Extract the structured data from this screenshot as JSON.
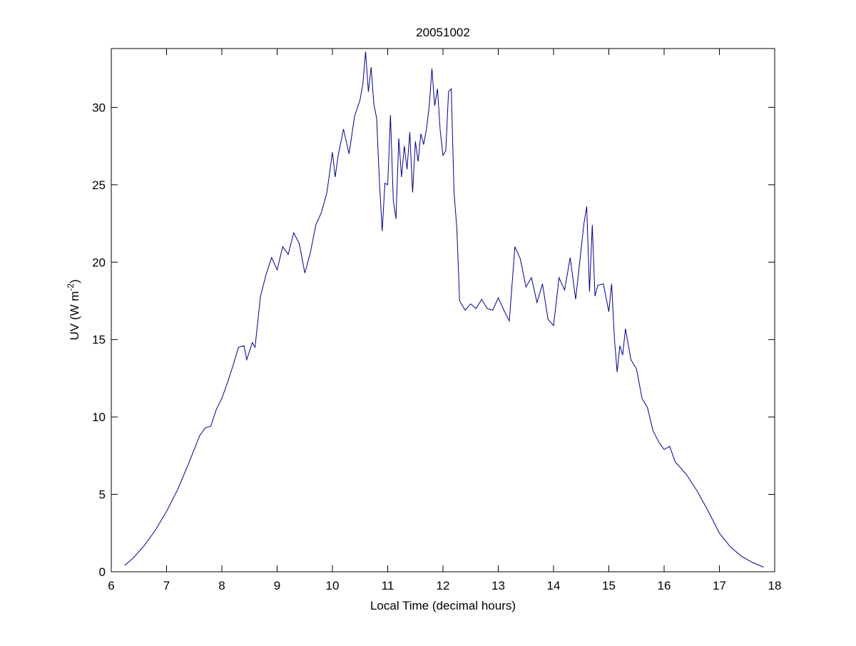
{
  "chart_data": {
    "type": "line",
    "title": "20051002",
    "xlabel": "Local Time (decimal hours)",
    "ylabel_main": "UV (W m",
    "ylabel_sup": "-2",
    "ylabel_close": ")",
    "xlim": [
      6,
      18
    ],
    "ylim": [
      0,
      33.8
    ],
    "xticks": [
      6,
      7,
      8,
      9,
      10,
      11,
      12,
      13,
      14,
      15,
      16,
      17,
      18
    ],
    "yticks": [
      0,
      5,
      10,
      15,
      20,
      25,
      30
    ],
    "grid": false,
    "legend": "none",
    "series": [
      {
        "color": "#00008b",
        "x": [
          6.24,
          6.4,
          6.6,
          6.8,
          7.0,
          7.2,
          7.4,
          7.6,
          7.7,
          7.8,
          7.9,
          8.0,
          8.1,
          8.2,
          8.3,
          8.4,
          8.45,
          8.55,
          8.6,
          8.7,
          8.8,
          8.9,
          9.0,
          9.1,
          9.2,
          9.3,
          9.4,
          9.5,
          9.6,
          9.7,
          9.8,
          9.9,
          10.0,
          10.05,
          10.1,
          10.2,
          10.3,
          10.4,
          10.5,
          10.55,
          10.6,
          10.65,
          10.7,
          10.75,
          10.8,
          10.85,
          10.9,
          10.95,
          11.0,
          11.05,
          11.1,
          11.15,
          11.2,
          11.25,
          11.3,
          11.35,
          11.4,
          11.45,
          11.5,
          11.55,
          11.6,
          11.65,
          11.7,
          11.75,
          11.8,
          11.85,
          11.9,
          11.95,
          12.0,
          12.05,
          12.1,
          12.15,
          12.2,
          12.25,
          12.3,
          12.4,
          12.5,
          12.6,
          12.7,
          12.8,
          12.9,
          13.0,
          13.1,
          13.2,
          13.3,
          13.4,
          13.5,
          13.6,
          13.7,
          13.8,
          13.9,
          14.0,
          14.1,
          14.2,
          14.3,
          14.4,
          14.5,
          14.55,
          14.6,
          14.65,
          14.7,
          14.75,
          14.8,
          14.9,
          15.0,
          15.05,
          15.1,
          15.15,
          15.2,
          15.25,
          15.3,
          15.4,
          15.5,
          15.6,
          15.7,
          15.8,
          15.9,
          16.0,
          16.1,
          16.2,
          16.4,
          16.6,
          16.8,
          17.0,
          17.2,
          17.4,
          17.6,
          17.8
        ],
        "y": [
          0.4,
          0.9,
          1.7,
          2.7,
          3.9,
          5.3,
          7.0,
          8.8,
          9.3,
          9.4,
          10.5,
          11.2,
          12.2,
          13.3,
          14.5,
          14.6,
          13.7,
          14.8,
          14.5,
          17.8,
          19.2,
          20.3,
          19.5,
          21.0,
          20.5,
          21.9,
          21.2,
          19.3,
          20.6,
          22.4,
          23.2,
          24.5,
          27.1,
          25.5,
          26.8,
          28.6,
          27.0,
          29.4,
          30.5,
          31.5,
          33.6,
          31.0,
          32.6,
          30.2,
          29.3,
          25.2,
          22.0,
          25.1,
          25.0,
          29.5,
          24.0,
          22.8,
          28.0,
          25.5,
          27.5,
          26.0,
          28.4,
          24.5,
          27.8,
          26.5,
          28.3,
          27.6,
          28.6,
          30.0,
          32.5,
          30.1,
          31.2,
          28.5,
          26.9,
          27.2,
          31.0,
          31.2,
          24.5,
          22.2,
          17.5,
          16.9,
          17.3,
          17.0,
          17.6,
          17.0,
          16.9,
          17.7,
          16.9,
          16.2,
          21.0,
          20.2,
          18.4,
          19.0,
          17.4,
          18.6,
          16.3,
          15.9,
          19.0,
          18.2,
          20.3,
          17.6,
          20.9,
          22.5,
          23.6,
          18.1,
          22.4,
          17.8,
          18.5,
          18.6,
          16.8,
          18.6,
          15.1,
          12.9,
          14.6,
          14.0,
          15.7,
          13.7,
          13.1,
          11.2,
          10.6,
          9.1,
          8.4,
          7.9,
          8.1,
          7.1,
          6.3,
          5.2,
          3.9,
          2.5,
          1.6,
          1.0,
          0.6,
          0.3
        ]
      }
    ]
  }
}
